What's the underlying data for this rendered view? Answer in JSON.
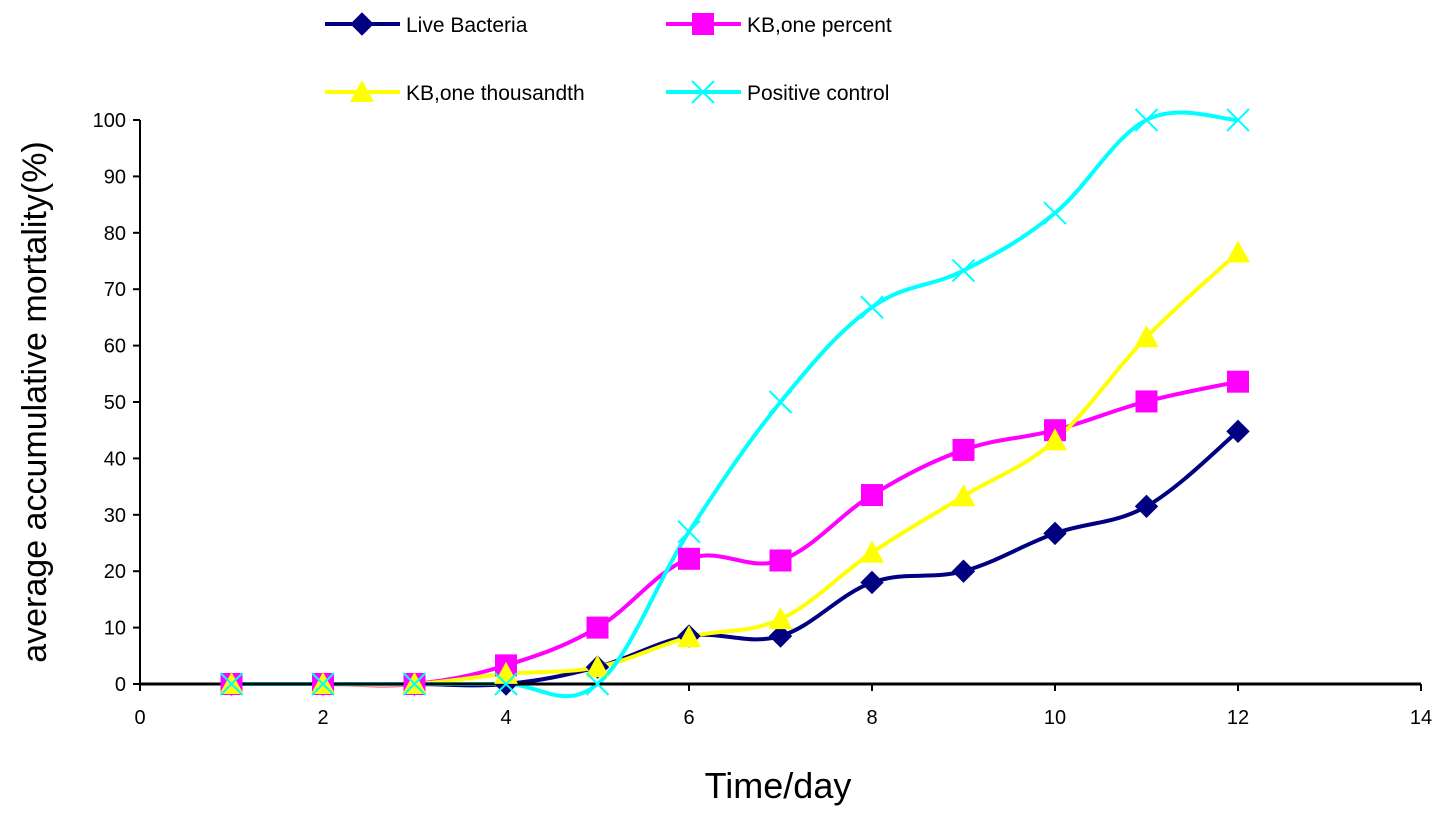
{
  "chart_data": {
    "type": "line",
    "title": "",
    "xlabel": "Time/day",
    "ylabel": "average accumulative mortality(%)",
    "xlim": [
      0,
      14
    ],
    "ylim": [
      0,
      100
    ],
    "x_ticks": [
      0,
      2,
      4,
      6,
      8,
      10,
      12,
      14
    ],
    "y_ticks": [
      0,
      10,
      20,
      30,
      40,
      50,
      60,
      70,
      80,
      90,
      100
    ],
    "grid": false,
    "legend_position": "top",
    "x": [
      1,
      2,
      3,
      4,
      5,
      6,
      7,
      8,
      9,
      10,
      11,
      12
    ],
    "series": [
      {
        "name": "Live Bacteria",
        "color": "#000080",
        "marker": "diamond",
        "values": [
          0,
          0,
          0,
          0,
          3,
          8.5,
          8.5,
          18,
          20,
          26.7,
          31.5,
          44.8
        ]
      },
      {
        "name": "KB,one percent",
        "color": "#ff00ff",
        "marker": "square",
        "values": [
          0,
          0,
          0,
          3.3,
          10,
          22.2,
          21.9,
          33.5,
          41.5,
          45,
          50.1,
          53.6
        ]
      },
      {
        "name": "KB,one thousandth",
        "color": "#ffff00",
        "marker": "triangle",
        "values": [
          0,
          0,
          0,
          1.8,
          3,
          8.3,
          11.5,
          23.3,
          33.3,
          43.2,
          61.5,
          76.5
        ]
      },
      {
        "name": "Positive control",
        "color": "#00ffff",
        "marker": "x",
        "values": [
          0,
          0,
          0,
          0,
          0,
          27,
          50,
          66.8,
          73.3,
          83.5,
          100,
          100
        ]
      }
    ]
  }
}
